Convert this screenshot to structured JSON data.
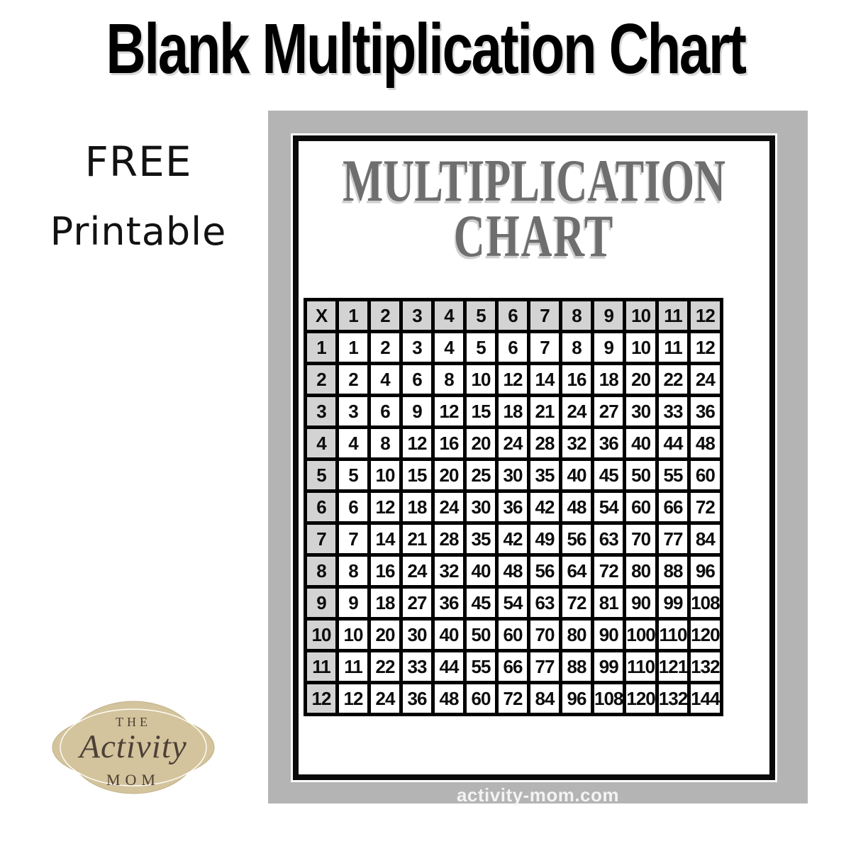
{
  "headline": "Blank Multiplication Chart",
  "free_note": {
    "line1": "FREE",
    "line2": "Printable"
  },
  "printable": {
    "title_line1": "MULTIPLICATION",
    "title_line2": "CHART",
    "footer_url": "activity-mom.com"
  },
  "chart_data": {
    "type": "table",
    "title": "Multiplication Chart",
    "corner_label": "X",
    "column_headers": [
      1,
      2,
      3,
      4,
      5,
      6,
      7,
      8,
      9,
      10,
      11,
      12
    ],
    "rows": [
      {
        "header": 1,
        "values": [
          1,
          2,
          3,
          4,
          5,
          6,
          7,
          8,
          9,
          10,
          11,
          12
        ]
      },
      {
        "header": 2,
        "values": [
          2,
          4,
          6,
          8,
          10,
          12,
          14,
          16,
          18,
          20,
          22,
          24
        ]
      },
      {
        "header": 3,
        "values": [
          3,
          6,
          9,
          12,
          15,
          18,
          21,
          24,
          27,
          30,
          33,
          36
        ]
      },
      {
        "header": 4,
        "values": [
          4,
          8,
          12,
          16,
          20,
          24,
          28,
          32,
          36,
          40,
          44,
          48
        ]
      },
      {
        "header": 5,
        "values": [
          5,
          10,
          15,
          20,
          25,
          30,
          35,
          40,
          45,
          50,
          55,
          60
        ]
      },
      {
        "header": 6,
        "values": [
          6,
          12,
          18,
          24,
          30,
          36,
          42,
          48,
          54,
          60,
          66,
          72
        ]
      },
      {
        "header": 7,
        "values": [
          7,
          14,
          21,
          28,
          35,
          42,
          49,
          56,
          63,
          70,
          77,
          84
        ]
      },
      {
        "header": 8,
        "values": [
          8,
          16,
          24,
          32,
          40,
          48,
          56,
          64,
          72,
          80,
          88,
          96
        ]
      },
      {
        "header": 9,
        "values": [
          9,
          18,
          27,
          36,
          45,
          54,
          63,
          72,
          81,
          90,
          99,
          108
        ]
      },
      {
        "header": 10,
        "values": [
          10,
          20,
          30,
          40,
          50,
          60,
          70,
          80,
          90,
          100,
          110,
          120
        ]
      },
      {
        "header": 11,
        "values": [
          11,
          22,
          33,
          44,
          55,
          66,
          77,
          88,
          99,
          110,
          121,
          132
        ]
      },
      {
        "header": 12,
        "values": [
          12,
          24,
          36,
          48,
          60,
          72,
          84,
          96,
          108,
          120,
          132,
          144
        ]
      }
    ]
  },
  "logo": {
    "line1": "The",
    "line2": "Activity",
    "line3": "Mom"
  },
  "colors": {
    "card_gray": "#b4b4b4",
    "header_cell_gray": "#d3d3d3",
    "sheet_title_gray": "#6e6e6e",
    "border_black": "#0a0a0a",
    "footer_text": "#f3f3f3",
    "logo_tan": "#d3c49d",
    "logo_brown": "#4d4036"
  }
}
